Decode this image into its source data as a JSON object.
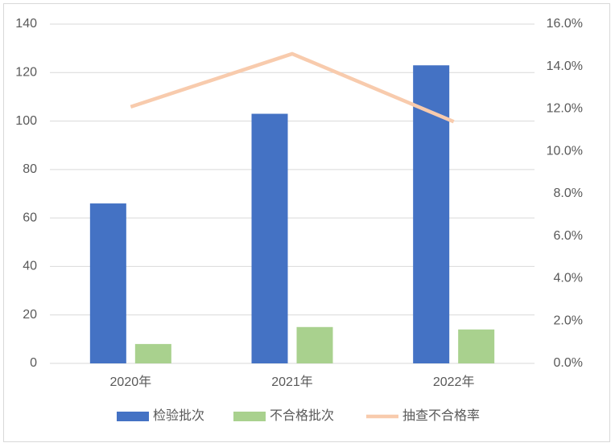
{
  "chart_data": {
    "type": "bar",
    "categories": [
      "2020年",
      "2021年",
      "2022年"
    ],
    "series": [
      {
        "name": "检验批次",
        "color": "#4472c4",
        "type": "bar",
        "values": [
          66,
          103,
          123
        ]
      },
      {
        "name": "不合格批次",
        "color": "#a9d18e",
        "type": "bar",
        "values": [
          8,
          15,
          14
        ]
      },
      {
        "name": "抽查不合格率",
        "color": "#f8cbad",
        "type": "line",
        "axis": "y2",
        "values": [
          12.1,
          14.6,
          11.4
        ]
      }
    ],
    "ylim": [
      0,
      140
    ],
    "yticks": [
      0,
      20,
      40,
      60,
      80,
      100,
      120,
      140
    ],
    "y2lim": [
      0,
      16
    ],
    "y2ticks": [
      {
        "value": 0,
        "label": "0.0%"
      },
      {
        "value": 2,
        "label": "2.0%"
      },
      {
        "value": 4,
        "label": "4.0%"
      },
      {
        "value": 6,
        "label": "6.0%"
      },
      {
        "value": 8,
        "label": "8.0%"
      },
      {
        "value": 10,
        "label": "10.0%"
      },
      {
        "value": 12,
        "label": "12.0%"
      },
      {
        "value": 14,
        "label": "14.0%"
      },
      {
        "value": 16,
        "label": "16.0%"
      }
    ],
    "grid": true,
    "legend": "bottom"
  }
}
